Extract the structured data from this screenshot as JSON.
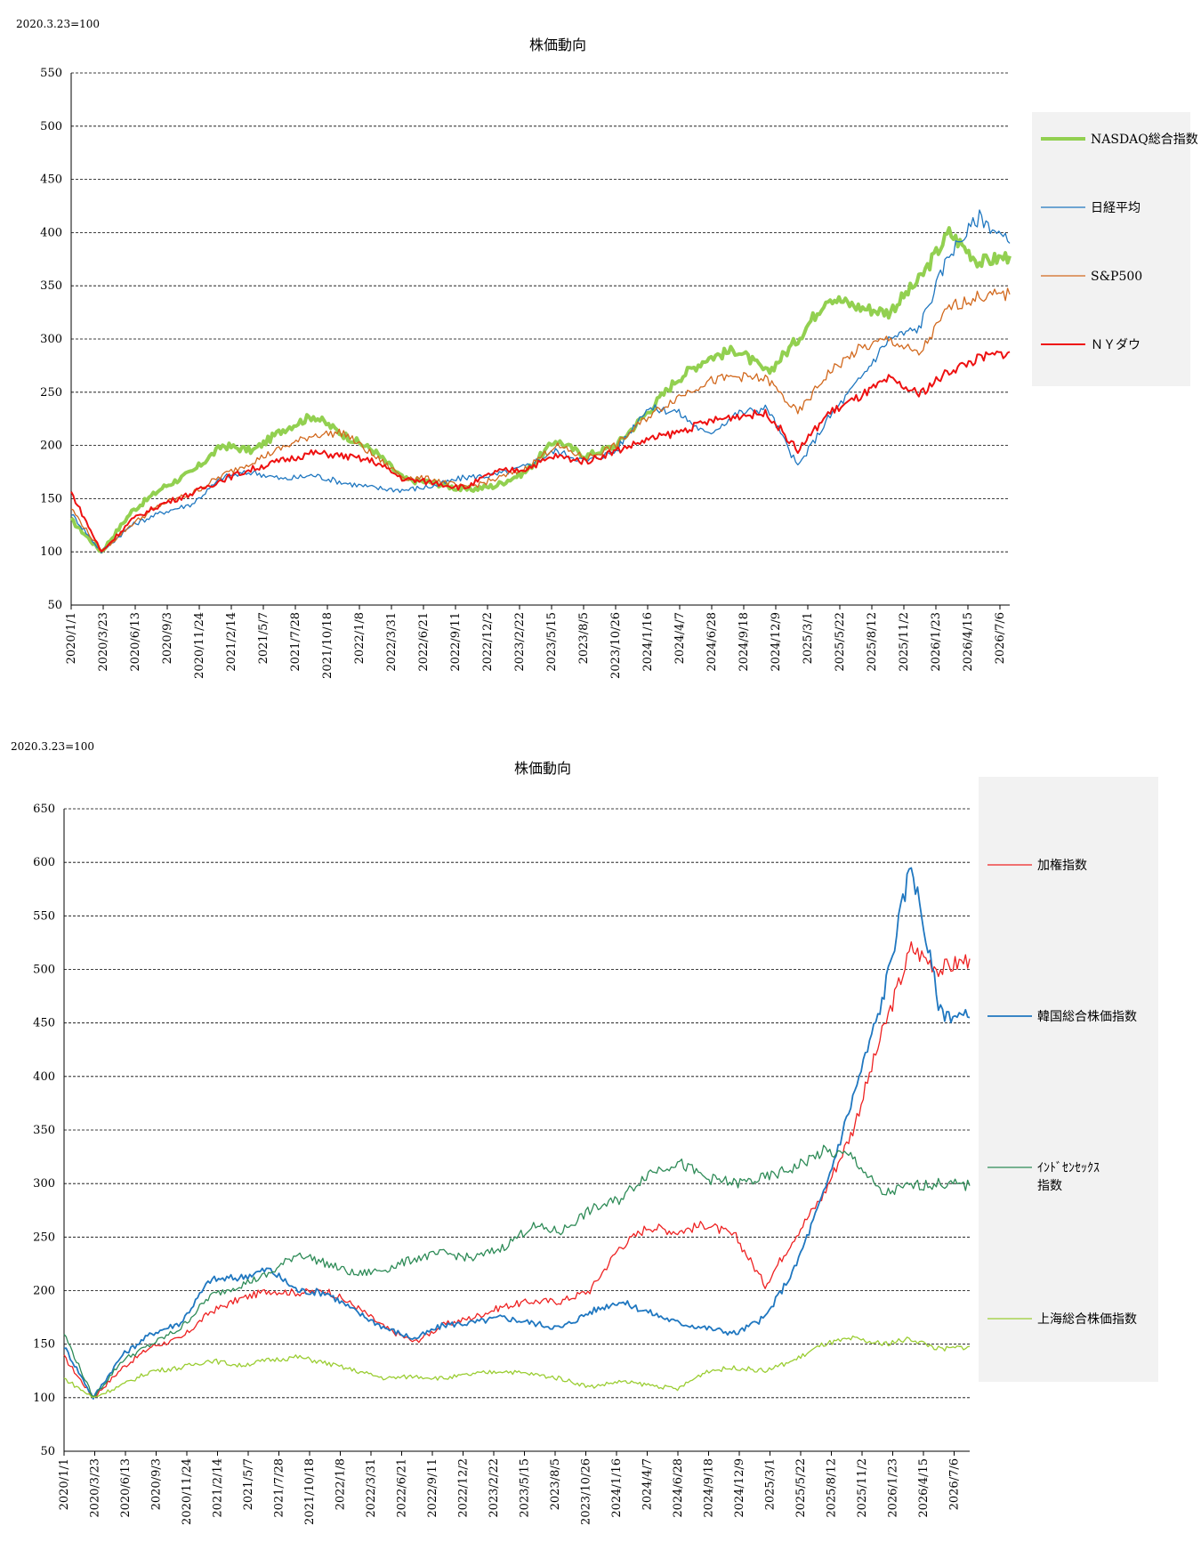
{
  "charts": [
    {
      "base_note": "2020.3.23=100",
      "title": "株価動向"
    },
    {
      "base_note": "2020.3.23=100",
      "title": "株価動向"
    }
  ],
  "chart_data": [
    {
      "type": "line",
      "title": "株価動向",
      "ylim": [
        50,
        550
      ],
      "yticks": [
        50,
        100,
        150,
        200,
        250,
        300,
        350,
        400,
        450,
        500,
        550
      ],
      "x_tick_labels": [
        "2020/1/1",
        "2020/3/23",
        "2020/6/13",
        "2020/9/3",
        "2020/11/24",
        "2021/2/14",
        "2021/5/7",
        "2021/7/28",
        "2021/10/18",
        "2022/1/8",
        "2022/3/31",
        "2022/6/21",
        "2022/9/11",
        "2022/12/2",
        "2023/2/22",
        "2023/5/15",
        "2023/8/5",
        "2023/10/26",
        "2024/1/16",
        "2024/4/7",
        "2024/6/28",
        "2024/9/18",
        "2024/12/9",
        "2025/3/1",
        "2025/5/22",
        "2025/8/12",
        "2025/11/2",
        "2026/1/23",
        "2026/4/15",
        "2026/7/6"
      ],
      "grid": "horizontal dashed",
      "legend_position": "right",
      "series": [
        {
          "name": "NASDAQ総合指数",
          "color": "#92d050",
          "width": 4,
          "values": [
            130,
            100,
            138,
            160,
            175,
            200,
            195,
            215,
            228,
            210,
            195,
            168,
            165,
            158,
            162,
            175,
            205,
            190,
            200,
            230,
            262,
            282,
            290,
            268,
            300,
            340,
            330,
            325,
            355,
            400,
            372,
            378
          ]
        },
        {
          "name": "日経平均",
          "color": "#1f77c0",
          "width": 1.3,
          "values": [
            136,
            100,
            125,
            137,
            145,
            170,
            175,
            168,
            172,
            165,
            160,
            158,
            162,
            170,
            172,
            180,
            195,
            185,
            195,
            235,
            232,
            210,
            230,
            235,
            180,
            225,
            260,
            300,
            310,
            380,
            415,
            390
          ]
        },
        {
          "name": "S&P500",
          "color": "#d2691e",
          "width": 1.3,
          "values": [
            141,
            100,
            126,
            145,
            155,
            172,
            185,
            198,
            210,
            212,
            190,
            170,
            168,
            160,
            168,
            178,
            200,
            188,
            200,
            226,
            245,
            260,
            265,
            262,
            230,
            268,
            290,
            300,
            285,
            330,
            340,
            342
          ]
        },
        {
          "name": "ＮＹダウ",
          "color": "#ee1111",
          "width": 2,
          "values": [
            156,
            100,
            130,
            145,
            155,
            168,
            178,
            186,
            193,
            190,
            185,
            168,
            165,
            160,
            175,
            178,
            190,
            185,
            195,
            205,
            212,
            222,
            228,
            230,
            195,
            230,
            245,
            262,
            248,
            270,
            282,
            288
          ]
        }
      ]
    },
    {
      "type": "line",
      "title": "株価動向",
      "ylim": [
        50,
        650
      ],
      "yticks": [
        50,
        100,
        150,
        200,
        250,
        300,
        350,
        400,
        450,
        500,
        550,
        600,
        650
      ],
      "x_tick_labels": [
        "2020/1/1",
        "2020/3/23",
        "2020/6/13",
        "2020/9/3",
        "2020/11/24",
        "2021/2/14",
        "2021/5/7",
        "2021/7/28",
        "2021/10/18",
        "2022/1/8",
        "2022/3/31",
        "2022/6/21",
        "2022/9/11",
        "2022/12/2",
        "2023/2/22",
        "2023/5/15",
        "2023/8/5",
        "2023/10/26",
        "2024/1/16",
        "2024/4/7",
        "2024/6/28",
        "2024/9/18",
        "2024/12/9",
        "2025/3/1",
        "2025/5/22",
        "2025/8/12",
        "2025/11/2",
        "2026/1/23",
        "2026/4/15",
        "2026/7/6"
      ],
      "grid": "horizontal dashed",
      "legend_position": "right",
      "series": [
        {
          "name": "加権指数",
          "color": "#ee2222",
          "width": 1.3,
          "values": [
            138,
            100,
            128,
            148,
            155,
            180,
            192,
            200,
            198,
            200,
            185,
            165,
            152,
            168,
            175,
            185,
            190,
            190,
            200,
            240,
            260,
            255,
            262,
            250,
            205,
            250,
            290,
            350,
            440,
            520,
            500,
            510
          ]
        },
        {
          "name": "韓国総合株価指数",
          "color": "#1f77c0",
          "width": 1.8,
          "values": [
            148,
            100,
            140,
            160,
            170,
            210,
            212,
            220,
            200,
            198,
            180,
            165,
            155,
            168,
            170,
            175,
            170,
            165,
            180,
            190,
            180,
            170,
            165,
            160,
            175,
            220,
            290,
            380,
            470,
            600,
            460,
            455
          ]
        },
        {
          "name": "ｲﾝﾄﾞｾﾝｾｯｸｽ指数",
          "color": "#2e8b57",
          "width": 1.3,
          "values": [
            160,
            100,
            135,
            150,
            165,
            195,
            205,
            215,
            235,
            225,
            215,
            220,
            230,
            235,
            230,
            240,
            260,
            255,
            275,
            285,
            310,
            320,
            305,
            300,
            305,
            315,
            330,
            325,
            290,
            298,
            300,
            298
          ]
        },
        {
          "name": "上海総合株価指数",
          "color": "#9acd32",
          "width": 1.3,
          "values": [
            118,
            100,
            112,
            125,
            128,
            135,
            130,
            135,
            138,
            132,
            125,
            118,
            120,
            118,
            122,
            125,
            122,
            118,
            110,
            115,
            112,
            108,
            125,
            128,
            125,
            135,
            150,
            155,
            150,
            155,
            145,
            148
          ]
        }
      ]
    }
  ]
}
